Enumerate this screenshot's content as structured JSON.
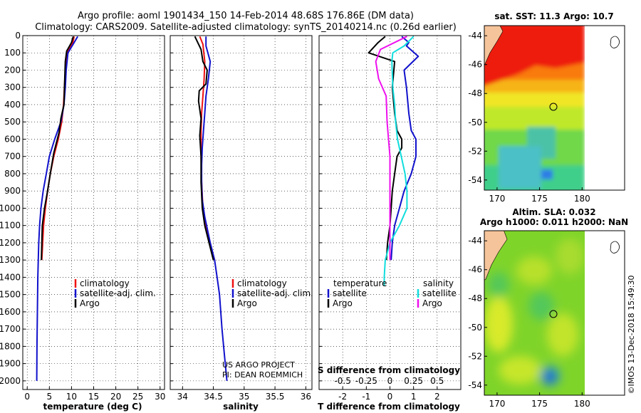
{
  "title": {
    "line1": "Argo profile: aoml 1901434_150 14-Feb-2014 48.68S 176.86E (DM data)",
    "line2": "Climatology: CARS2009. Satellite-adjusted climatology: synTS_20140214.nc (0.26d earlier)"
  },
  "colors": {
    "climatology": "#ee1111",
    "satellite_adj": "#1111cc",
    "argo": "#000000",
    "sat_salinity": "#11dddd",
    "argo_salinity": "#ee11ee",
    "land": "#f6c49a"
  },
  "chart_data": [
    {
      "type": "line",
      "id": "temperature_profile",
      "xlabel": "temperature (deg C)",
      "ylabel": "",
      "xlim": [
        -1,
        31
      ],
      "ylim": [
        2050,
        0
      ],
      "xticks": [
        "0",
        "5",
        "10",
        "15",
        "20",
        "25",
        "30"
      ],
      "xtick_values": [
        0,
        5,
        10,
        15,
        20,
        25,
        30
      ],
      "yticks": [
        "0",
        "100",
        "200",
        "300",
        "400",
        "500",
        "600",
        "700",
        "800",
        "900",
        "1000",
        "1100",
        "1200",
        "1300",
        "1400",
        "1500",
        "1600",
        "1700",
        "1800",
        "1900",
        "2000"
      ],
      "ytick_values": [
        0,
        100,
        200,
        300,
        400,
        500,
        600,
        700,
        800,
        900,
        1000,
        1100,
        1200,
        1300,
        1400,
        1500,
        1600,
        1700,
        1800,
        1900,
        2000
      ],
      "legend": [
        "climatology",
        "satellite-adj. clim.",
        "Argo"
      ],
      "series": [
        {
          "name": "climatology",
          "color": "#ee1111",
          "x": [
            10.6,
            10.3,
            9.0,
            8.5,
            8.2,
            7.8,
            7.0,
            6.0,
            5.2,
            4.6,
            4.1,
            3.7,
            3.3
          ],
          "y": [
            5,
            40,
            100,
            250,
            400,
            500,
            600,
            700,
            800,
            900,
            1000,
            1100,
            1300
          ]
        },
        {
          "name": "satellite-adj. clim.",
          "color": "#1111cc",
          "x": [
            11.4,
            10.6,
            9.2,
            8.8,
            8.6,
            8.3,
            7.6,
            6.2,
            5.0,
            4.3,
            3.6,
            3.1,
            2.8,
            2.6,
            2.4,
            2.3,
            2.2,
            2.15
          ],
          "y": [
            5,
            40,
            100,
            200,
            300,
            400,
            500,
            600,
            700,
            800,
            900,
            1000,
            1100,
            1200,
            1400,
            1600,
            1800,
            2000
          ]
        },
        {
          "name": "Argo",
          "color": "#000000",
          "x": [
            10.4,
            10.0,
            8.9,
            8.6,
            8.4,
            8.3,
            7.6,
            7.2,
            6.0,
            5.2,
            4.6,
            3.9,
            3.4,
            3.2
          ],
          "y": [
            5,
            40,
            90,
            150,
            300,
            400,
            480,
            560,
            680,
            800,
            900,
            1000,
            1100,
            1300
          ]
        }
      ]
    },
    {
      "type": "line",
      "id": "salinity_profile",
      "xlabel": "salinity",
      "xlim": [
        33.8,
        36.1
      ],
      "ylim": [
        2050,
        0
      ],
      "xticks": [
        "34",
        "34.5",
        "35",
        "35.5",
        "36"
      ],
      "xtick_values": [
        34,
        34.5,
        35,
        35.5,
        36
      ],
      "legend": [
        "climatology",
        "satellite-adj. clim.",
        "Argo"
      ],
      "series": [
        {
          "name": "climatology",
          "color": "#ee1111",
          "x": [
            34.28,
            34.33,
            34.36,
            34.35,
            34.33,
            34.31,
            34.3,
            34.3,
            34.31,
            34.33,
            34.38,
            34.44,
            34.52
          ],
          "y": [
            5,
            50,
            150,
            250,
            350,
            450,
            550,
            700,
            850,
            1000,
            1100,
            1200,
            1300
          ]
        },
        {
          "name": "satellite-adj. clim.",
          "color": "#1111cc",
          "x": [
            34.38,
            34.38,
            34.45,
            34.42,
            34.38,
            34.36,
            34.34,
            34.32,
            34.31,
            34.31,
            34.32,
            34.36,
            34.45,
            34.52,
            34.56,
            34.6,
            34.64,
            34.68,
            34.72
          ],
          "y": [
            5,
            60,
            150,
            250,
            350,
            450,
            550,
            650,
            750,
            850,
            950,
            1050,
            1200,
            1300,
            1400,
            1500,
            1700,
            1850,
            2000
          ]
        },
        {
          "name": "Argo",
          "color": "#000000",
          "x": [
            34.2,
            34.3,
            34.33,
            34.4,
            34.38,
            34.27,
            34.26,
            34.3,
            34.28,
            34.3,
            34.3,
            34.32,
            34.36,
            34.43,
            34.5
          ],
          "y": [
            5,
            80,
            150,
            200,
            280,
            320,
            380,
            480,
            580,
            700,
            850,
            1000,
            1100,
            1200,
            1300
          ]
        }
      ]
    },
    {
      "type": "line",
      "id": "difference_profile",
      "xlabel": "T difference from climatology",
      "top_label": "S difference from climatology",
      "xlim": [
        -3,
        3
      ],
      "ylim": [
        2050,
        0
      ],
      "xticks": [
        "-2",
        "-1",
        "0",
        "1",
        "2"
      ],
      "xtick_values": [
        -2,
        -1,
        0,
        1,
        2
      ],
      "sticks": [
        "-0.5",
        "-0.25",
        "0",
        "0.25",
        "0.5"
      ],
      "stick_values": [
        -0.5,
        -0.25,
        0,
        0.25,
        0.5
      ],
      "legend_temperature_header": "temperature",
      "legend_salinity_header": "salinity",
      "legend": [
        "satellite",
        "Argo",
        "satellite",
        "Argo"
      ],
      "series": [
        {
          "name": "temperature satellite",
          "color": "#1111cc",
          "x": [
            0.5,
            0.8,
            0.7,
            1.2,
            0.6,
            0.7,
            0.8,
            0.9,
            1.1,
            1.1,
            0.9,
            0.6,
            0.4,
            0.2,
            0.1,
            0.05
          ],
          "y": [
            5,
            40,
            60,
            120,
            200,
            300,
            450,
            550,
            600,
            700,
            800,
            900,
            1000,
            1100,
            1200,
            1300
          ]
        },
        {
          "name": "temperature Argo",
          "color": "#000000",
          "x": [
            -0.2,
            -0.5,
            -0.9,
            0.2,
            0.1,
            0.2,
            0.3,
            0.5,
            0.5,
            0.3,
            0.2,
            0.1,
            0.05,
            0.0,
            -0.1,
            -0.15
          ],
          "y": [
            5,
            40,
            100,
            150,
            300,
            450,
            550,
            600,
            650,
            700,
            800,
            900,
            1000,
            1100,
            1200,
            1300
          ]
        },
        {
          "name": "salinity satellite",
          "color": "#11dddd",
          "x": [
            0.25,
            0.15,
            0.03,
            0.02,
            0.03,
            0.05,
            0.06,
            0.08,
            0.12,
            0.16,
            0.18,
            0.18,
            0.1,
            0.0,
            -0.05,
            -0.06,
            -0.06
          ],
          "y": [
            5,
            60,
            100,
            150,
            300,
            400,
            500,
            600,
            700,
            800,
            900,
            1000,
            1100,
            1200,
            1300,
            1400,
            1450
          ]
        },
        {
          "name": "salinity Argo",
          "color": "#ee11ee",
          "x": [
            0.18,
            -0.1,
            -0.15,
            -0.12,
            -0.04,
            -0.03,
            0.0,
            0.0,
            0.0
          ],
          "y": [
            5,
            80,
            150,
            250,
            350,
            500,
            700,
            1000,
            1300
          ]
        }
      ]
    },
    {
      "type": "heatmap",
      "id": "sst_map",
      "title": "sat. SST: 11.3 Argo: 10.7",
      "xlim": [
        168.5,
        185
      ],
      "ylim": [
        -54.7,
        -43.3
      ],
      "xticks": [
        "170",
        "175",
        "180"
      ],
      "xtick_values": [
        170,
        175,
        180
      ],
      "yticks": [
        "-44",
        "-46",
        "-48",
        "-50",
        "-52",
        "-54"
      ],
      "ytick_values": [
        -44,
        -46,
        -48,
        -50,
        -52,
        -54
      ],
      "data_xlim": [
        168.5,
        180
      ],
      "argo_position": [
        176.86,
        -48.68
      ]
    },
    {
      "type": "heatmap",
      "id": "sla_map",
      "title_line1": "Altim. SLA: 0.032",
      "title_line2": "Argo h1000: 0.011 h2000: NaN",
      "xlim": [
        168.5,
        185
      ],
      "ylim": [
        -54.7,
        -43.3
      ],
      "xticks": [
        "170",
        "175",
        "180"
      ],
      "xtick_values": [
        170,
        175,
        180
      ],
      "yticks": [
        "-44",
        "-46",
        "-48",
        "-50",
        "-52",
        "-54"
      ],
      "ytick_values": [
        -44,
        -46,
        -48,
        -50,
        -52,
        -54
      ],
      "data_xlim": [
        168.5,
        180
      ],
      "argo_position": [
        176.86,
        -48.68
      ]
    }
  ],
  "annotations": {
    "project_line1": "US ARGO PROJECT",
    "project_line2": "PI: DEAN ROEMMICH",
    "credit": "©IMOS 13-Dec-2018 15:49:30"
  }
}
